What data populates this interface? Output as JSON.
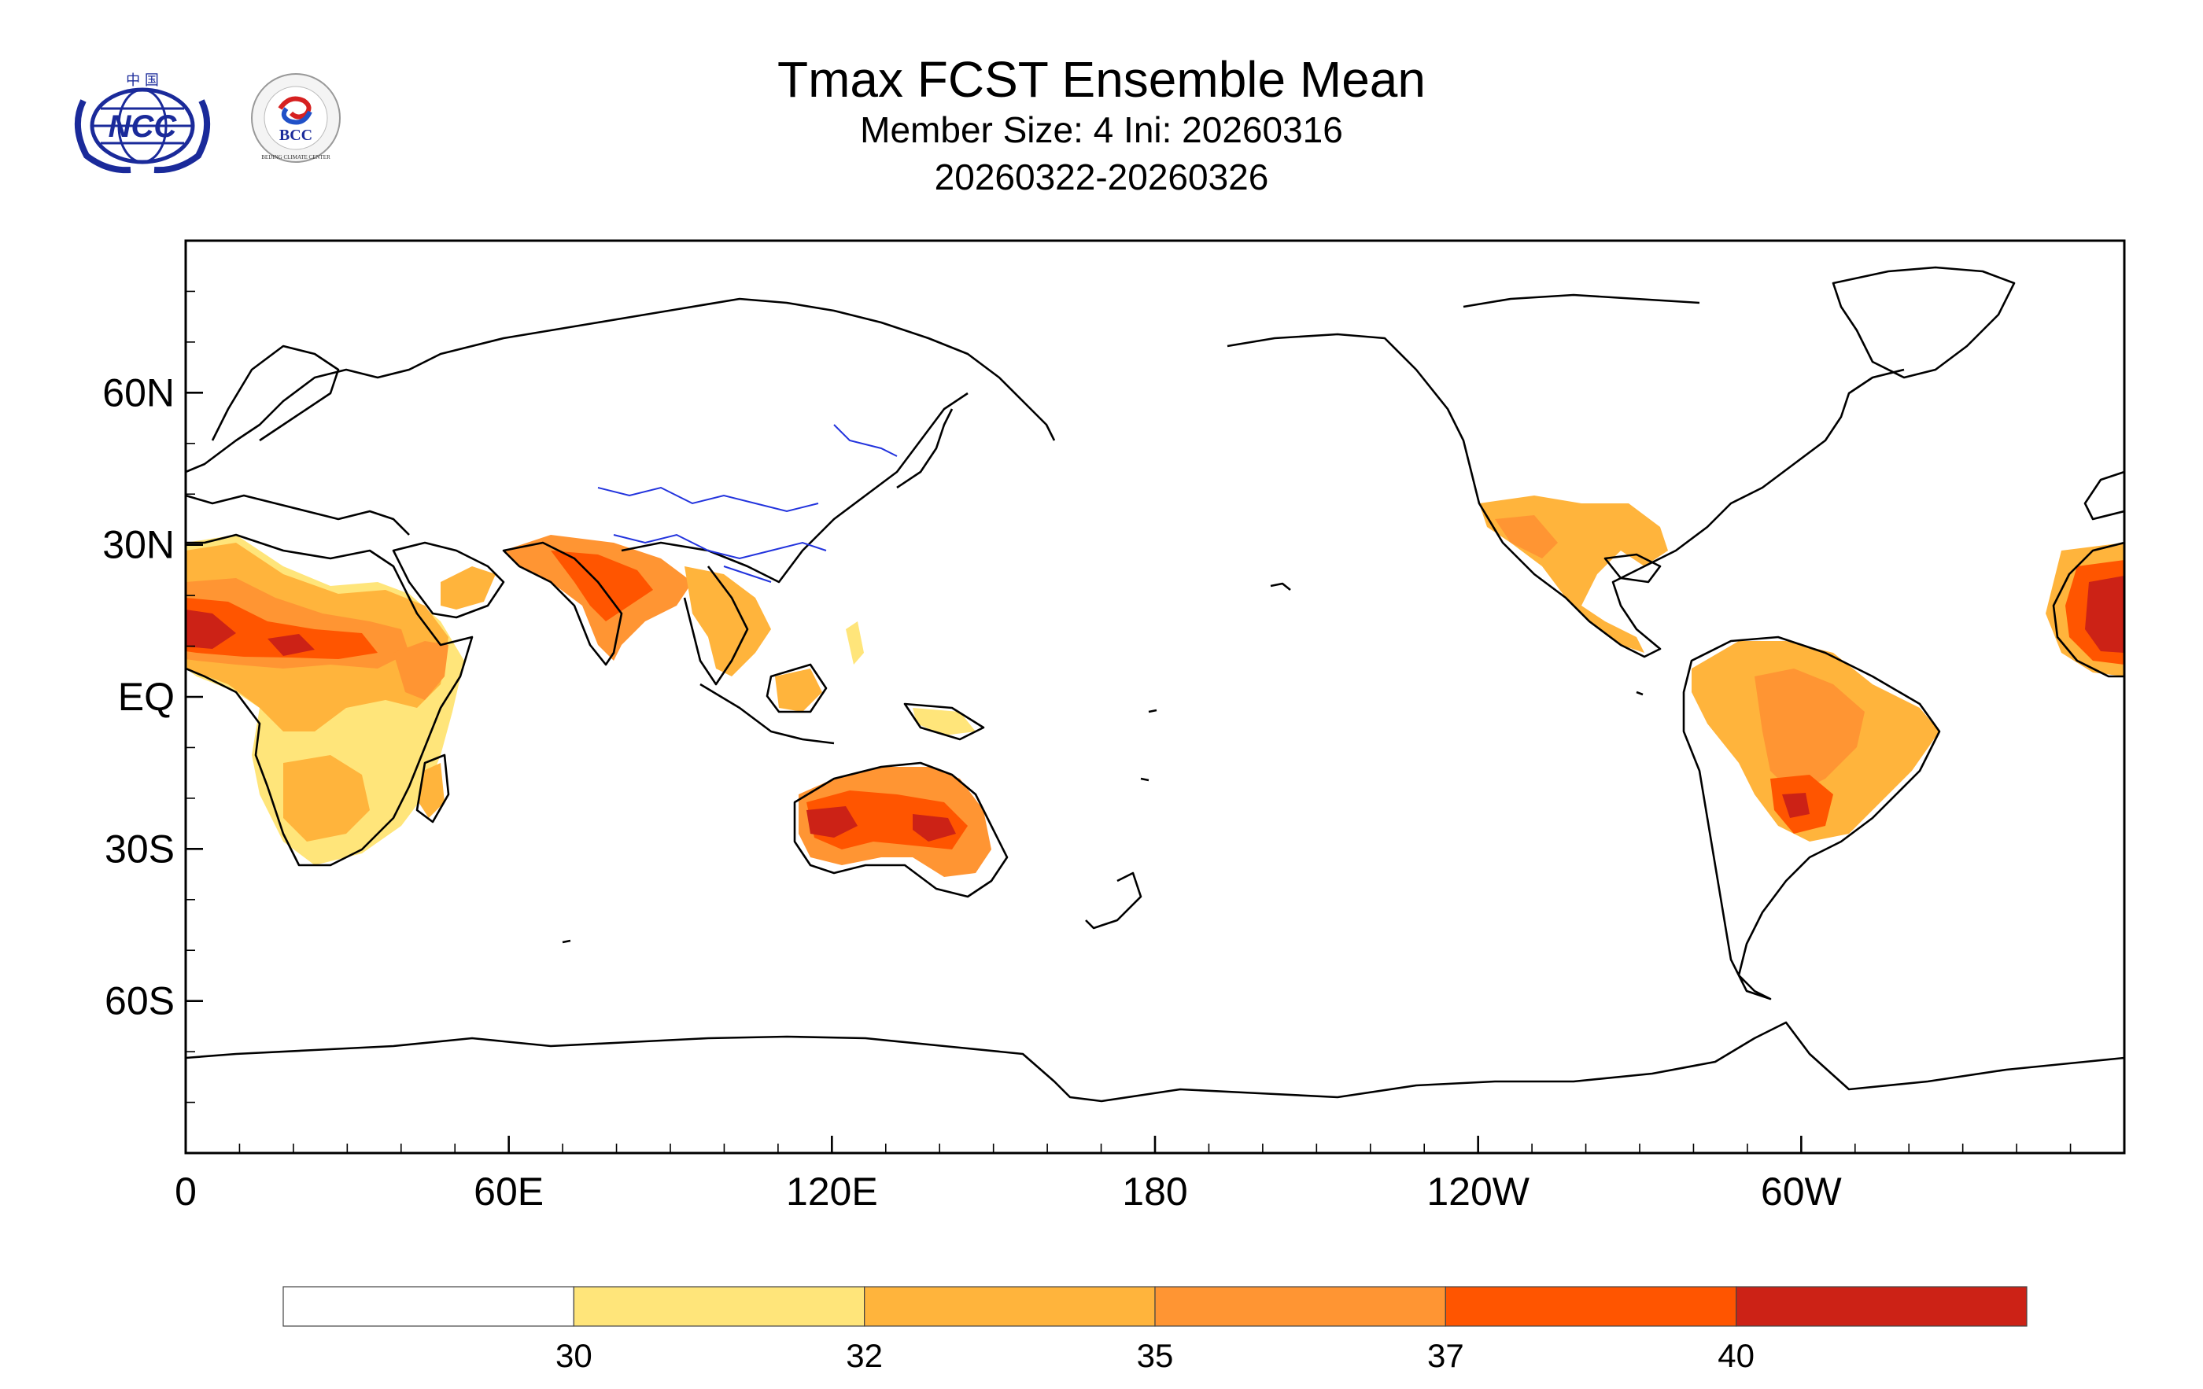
{
  "title": "Tmax FCST Ensemble Mean",
  "subtitle": "Member Size: 4  Ini: 20260316",
  "period": "20260322-20260326",
  "logos": {
    "ncc_text": "NCC",
    "ncc_top_text": "中 国",
    "bcc_text": "BCC",
    "bcc_ring_text": "BEIJING CLIMATE CENTER"
  },
  "axes": {
    "y_ticks": [
      {
        "label": "60N",
        "lat": 60
      },
      {
        "label": "30N",
        "lat": 30
      },
      {
        "label": "EQ",
        "lat": 0
      },
      {
        "label": "30S",
        "lat": -30
      },
      {
        "label": "60S",
        "lat": -60
      }
    ],
    "x_ticks": [
      {
        "label": "0",
        "lon": 0
      },
      {
        "label": "60E",
        "lon": 60
      },
      {
        "label": "120E",
        "lon": 120
      },
      {
        "label": "180",
        "lon": 180
      },
      {
        "label": "120W",
        "lon": 240
      },
      {
        "label": "60W",
        "lon": 300
      }
    ],
    "lon_range": [
      0,
      360
    ],
    "lat_range": [
      -90,
      90
    ]
  },
  "colorbar": {
    "bins": [
      {
        "color": "#ffffff"
      },
      {
        "color": "#ffe57a"
      },
      {
        "color": "#ffb43c"
      },
      {
        "color": "#ff9533"
      },
      {
        "color": "#ff5500"
      },
      {
        "color": "#cc2216"
      }
    ],
    "labels": [
      "30",
      "32",
      "35",
      "37",
      "40"
    ]
  },
  "map": {
    "coast_color": "#000000",
    "river_color": "#2233dd"
  }
}
